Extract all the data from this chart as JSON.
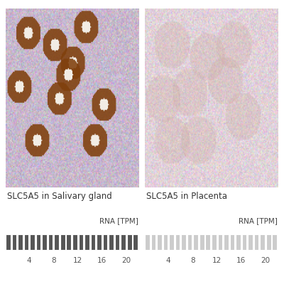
{
  "title_left": "SLC5A5 in Salivary gland",
  "title_right": "SLC5A5 in Placenta",
  "rna_label": "RNA [TPM]",
  "tick_labels": [
    4,
    8,
    12,
    16,
    20
  ],
  "num_bars": 22,
  "bar_color_left": "#555555",
  "bar_color_right": "#cccccc",
  "background_color": "#ffffff",
  "title_fontsize": 8.5,
  "tick_fontsize": 7.5,
  "rna_fontsize": 7.5,
  "fig_width": 4.0,
  "fig_height": 4.0
}
